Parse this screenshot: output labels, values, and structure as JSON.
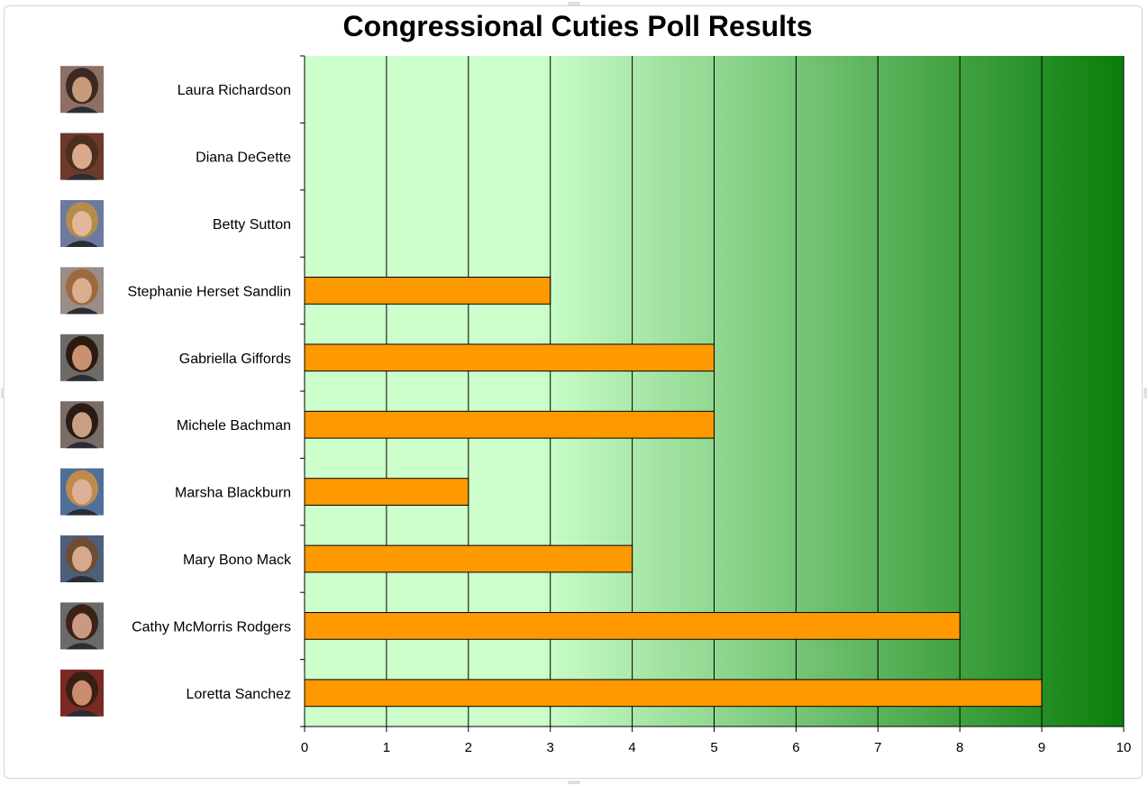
{
  "chart_data": {
    "type": "bar",
    "orientation": "horizontal",
    "title": "Congressional Cuties Poll Results",
    "xlabel": "",
    "ylabel": "",
    "categories": [
      "Laura Richardson",
      "Diana DeGette",
      "Betty Sutton",
      "Stephanie Herset Sandlin",
      "Gabriella Giffords",
      "Michele Bachman",
      "Marsha Blackburn",
      "Mary Bono Mack",
      "Cathy McMorris Rodgers",
      "Loretta Sanchez"
    ],
    "values": [
      0,
      0,
      0,
      3,
      5,
      5,
      2,
      4,
      8,
      9
    ],
    "xlim": [
      0,
      10
    ],
    "xticks": [
      "0",
      "1",
      "2",
      "3",
      "4",
      "5",
      "6",
      "7",
      "8",
      "9",
      "10"
    ],
    "grid": "vertical",
    "legend": "none",
    "colors": {
      "bar": "#ff9900",
      "background_start": "#ccffcc",
      "background_end": "#0b7d0b",
      "gridline": "#000000"
    },
    "category_images": "portrait-photo"
  }
}
